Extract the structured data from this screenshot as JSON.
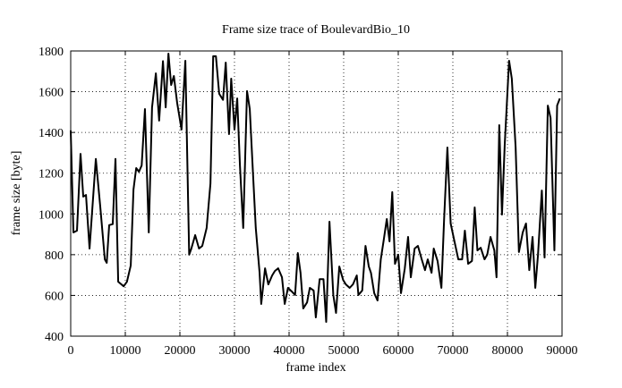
{
  "chart_data": {
    "type": "line",
    "title": "Frame size trace of BoulevardBio_10",
    "x_label": "frame index",
    "y_label": "frame size [byte]",
    "xlim": [
      0,
      90000
    ],
    "xticks": [
      0,
      10000,
      20000,
      30000,
      40000,
      50000,
      60000,
      70000,
      80000,
      90000
    ],
    "ylim": [
      400,
      1800
    ],
    "yticks": [
      400,
      600,
      800,
      1000,
      1200,
      1400,
      1600,
      1800
    ],
    "grid": true,
    "series": [
      {
        "color": "#000000",
        "x": [
          0,
          500,
          1150,
          1800,
          2300,
          2800,
          3450,
          4600,
          5400,
          6250,
          6600,
          7050,
          7700,
          8200,
          8700,
          9700,
          10300,
          11000,
          11500,
          12000,
          12500,
          13000,
          13600,
          14300,
          14900,
          15600,
          16200,
          16900,
          17400,
          17900,
          18400,
          18900,
          19500,
          20300,
          21000,
          21700,
          22100,
          22800,
          23500,
          24100,
          24900,
          25600,
          26100,
          26600,
          27200,
          27900,
          28400,
          29000,
          29400,
          30000,
          30500,
          31000,
          31600,
          32300,
          32800,
          33400,
          33900,
          34600,
          34900,
          35600,
          36200,
          36900,
          37400,
          38000,
          38700,
          39200,
          39800,
          40500,
          41100,
          41600,
          42100,
          42600,
          43300,
          43800,
          44500,
          44900,
          45600,
          46300,
          46800,
          47400,
          48100,
          48600,
          49200,
          49900,
          50400,
          51100,
          51700,
          52400,
          52700,
          53400,
          54000,
          54600,
          55000,
          55600,
          56200,
          56800,
          57300,
          57900,
          58400,
          58900,
          59400,
          60000,
          60500,
          61200,
          61800,
          62300,
          63000,
          63600,
          64300,
          64900,
          65400,
          66100,
          66500,
          67200,
          67900,
          68400,
          69000,
          69600,
          70400,
          71000,
          71700,
          72200,
          72800,
          73500,
          74000,
          74500,
          75100,
          75800,
          76300,
          76900,
          77600,
          78000,
          78500,
          79000,
          79500,
          80300,
          80800,
          81500,
          82100,
          82800,
          83400,
          84000,
          84600,
          85100,
          85600,
          86300,
          86800,
          87400,
          87900,
          88600,
          89100,
          89600
        ],
        "values": [
          1410,
          909,
          918,
          1295,
          1085,
          1093,
          830,
          1270,
          1040,
          777,
          760,
          945,
          950,
          1270,
          667,
          645,
          667,
          747,
          1120,
          1225,
          1207,
          1238,
          1515,
          909,
          1523,
          1690,
          1458,
          1750,
          1523,
          1787,
          1633,
          1677,
          1545,
          1414,
          1752,
          800,
          830,
          896,
          830,
          843,
          931,
          1150,
          1774,
          1774,
          1590,
          1560,
          1743,
          1392,
          1664,
          1414,
          1567,
          1238,
          931,
          1603,
          1515,
          1194,
          931,
          711,
          558,
          733,
          654,
          698,
          720,
          733,
          689,
          558,
          637,
          619,
          602,
          808,
          711,
          536,
          566,
          637,
          624,
          492,
          680,
          680,
          470,
          962,
          602,
          514,
          742,
          676,
          654,
          637,
          654,
          698,
          602,
          624,
          843,
          742,
          711,
          611,
          575,
          777,
          865,
          975,
          865,
          1107,
          755,
          800,
          611,
          733,
          887,
          689,
          830,
          843,
          777,
          724,
          777,
          711,
          830,
          769,
          637,
          975,
          1326,
          953,
          852,
          777,
          777,
          918,
          755,
          769,
          1032,
          821,
          834,
          777,
          800,
          887,
          821,
          689,
          1436,
          997,
          1339,
          1752,
          1664,
          1326,
          813,
          909,
          953,
          724,
          887,
          637,
          800,
          1115,
          786,
          1532,
          1471,
          821,
          1532,
          1567
        ]
      }
    ]
  }
}
